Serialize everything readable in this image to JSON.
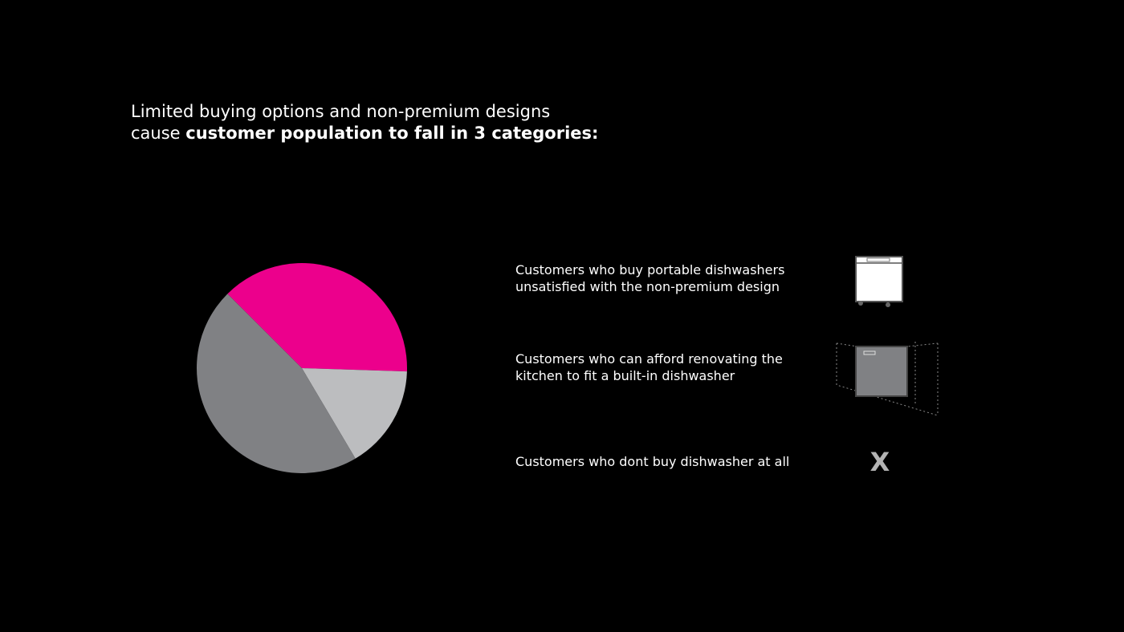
{
  "chart_data": {
    "type": "pie",
    "title": {
      "line1": "Limited buying options and non-premium designs",
      "line2": "cause",
      "emphasis": "customer population to fall in 3 categories:"
    },
    "categories": [
      "Customers who buy portable dishwashers\nunsatisfied with the non-premium design",
      "Customers who can afford  renovating the\nkitchen to fit a built-in dishwasher",
      "Customers who dont buy dishwasher at all"
    ],
    "values": [
      38,
      16,
      46
    ],
    "colors": [
      "#ec008c",
      "#bcbdbf",
      "#808184"
    ]
  },
  "icons": {
    "none": "X"
  }
}
